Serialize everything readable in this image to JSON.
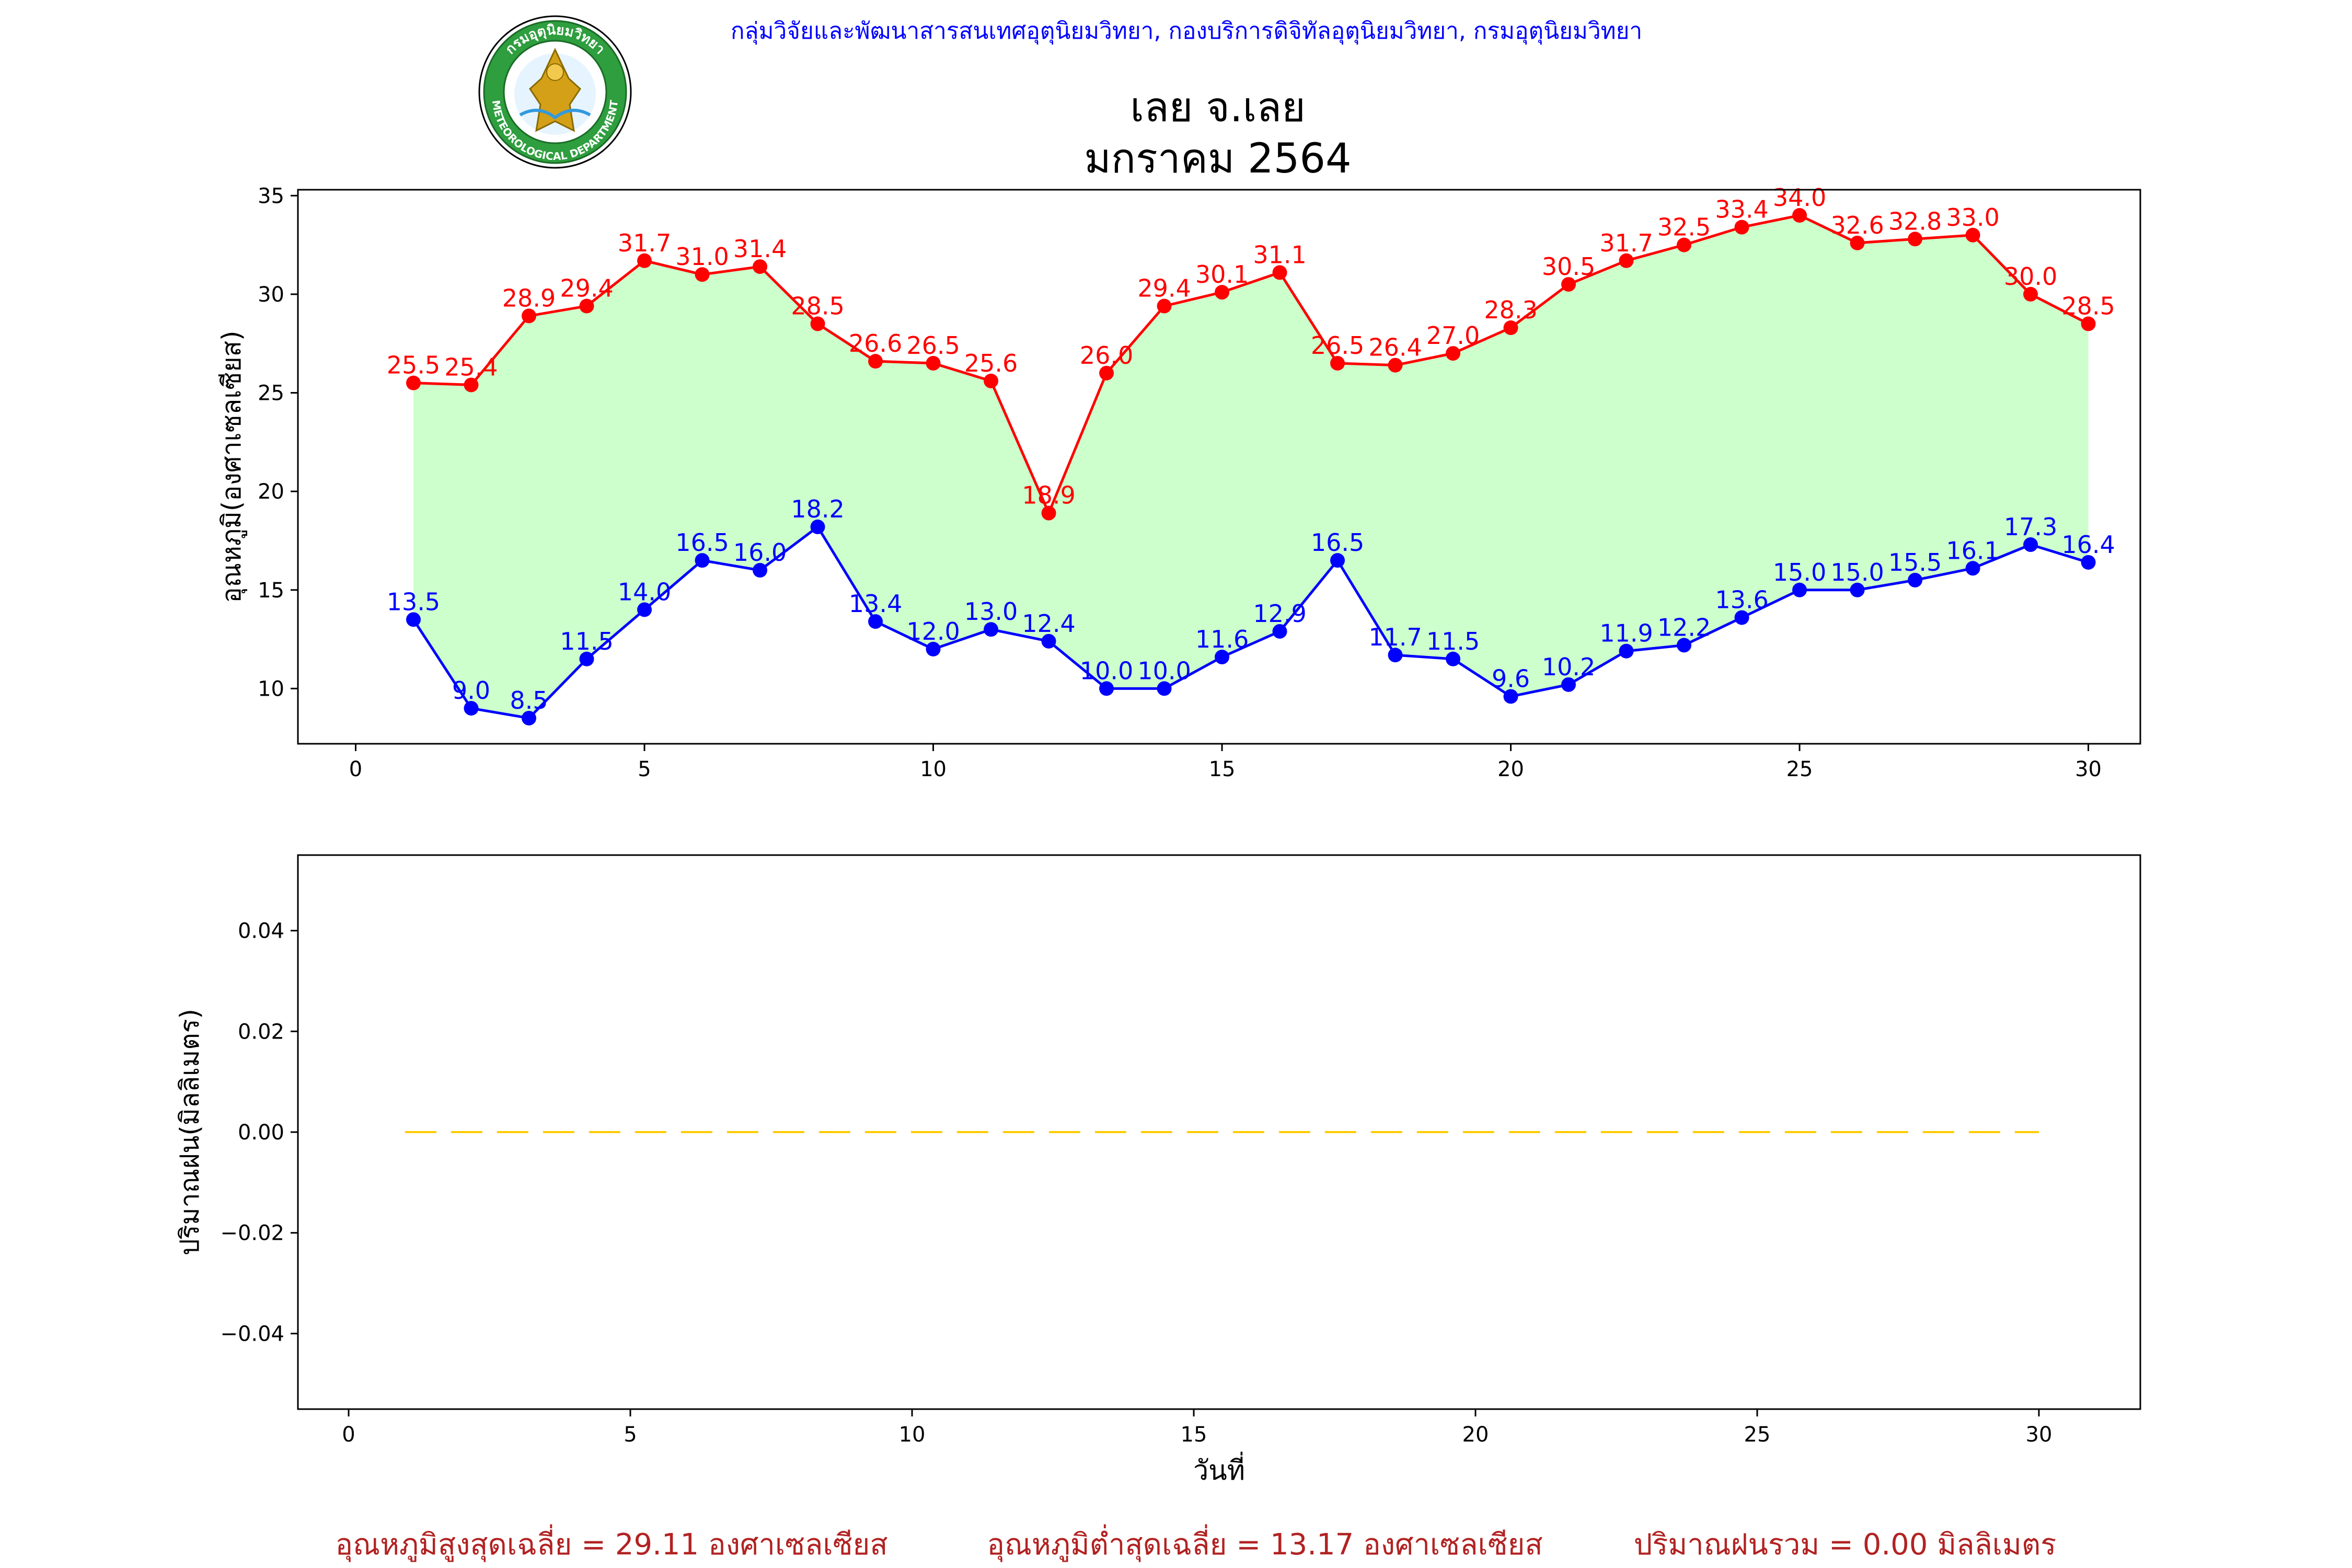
{
  "header": {
    "credit": "กลุ่มวิจัยและพัฒนาสารสนเทศอุตุนิยมวิทยา, กองบริการดิจิทัลอุตุนิยมวิทยา, กรมอุตุนิยมวิทยา",
    "station": "เลย จ.เลย",
    "period": "มกราคม 2564",
    "logo_top_text": "กรมอุตุนิยมวิทยา",
    "logo_bottom_text": "METEOROLOGICAL DEPARTMENT"
  },
  "colors": {
    "max": "#ff0000",
    "min": "#0000ff",
    "fill": "#ccffcc",
    "rain": "#ffcc00",
    "credit": "#0000ff",
    "footer": "#b22222"
  },
  "chart_data": [
    {
      "type": "line",
      "ylabel": "อุณหภูมิ(องศาเซลเซียส)",
      "xlabel": "",
      "xlim": [
        -1,
        30.9
      ],
      "ylim": [
        7.2,
        35.3
      ],
      "xticks": [
        "0",
        "5",
        "10",
        "15",
        "20",
        "25",
        "30"
      ],
      "yticks": [
        "10",
        "15",
        "20",
        "25",
        "30",
        "35"
      ],
      "x": [
        1,
        2,
        3,
        4,
        5,
        6,
        7,
        8,
        9,
        10,
        11,
        12,
        13,
        14,
        15,
        16,
        17,
        18,
        19,
        20,
        21,
        22,
        23,
        24,
        25,
        26,
        27,
        28,
        29,
        30
      ],
      "series": [
        {
          "values": [
            25.5,
            25.4,
            28.9,
            29.4,
            31.7,
            31.0,
            31.4,
            28.5,
            26.6,
            26.5,
            25.6,
            18.9,
            26.0,
            29.4,
            30.1,
            31.1,
            26.5,
            26.4,
            27.0,
            28.3,
            30.5,
            31.7,
            32.5,
            33.4,
            34.0,
            32.6,
            32.8,
            33.0,
            30.0,
            28.5
          ],
          "labels": [
            "25.5",
            "25.4",
            "28.9",
            "29.4",
            "31.7",
            "31.0",
            "31.4",
            "28.5",
            "26.6",
            "26.5",
            "25.6",
            "18.9",
            "26.0",
            "29.4",
            "30.1",
            "31.1",
            "26.5",
            "26.4",
            "27.0",
            "28.3",
            "30.5",
            "31.7",
            "32.5",
            "33.4",
            "34.0",
            "32.6",
            "32.8",
            "33.0",
            "30.0",
            "28.5"
          ]
        },
        {
          "values": [
            13.5,
            9.0,
            8.5,
            11.5,
            14.0,
            16.5,
            16.0,
            18.2,
            13.4,
            12.0,
            13.0,
            12.4,
            10.0,
            10.0,
            11.6,
            12.9,
            16.5,
            11.7,
            11.5,
            9.6,
            10.2,
            11.9,
            12.2,
            13.6,
            15.0,
            15.0,
            15.5,
            16.1,
            17.3,
            16.4
          ],
          "labels": [
            "13.5",
            "9.0",
            "8.5",
            "11.5",
            "14.0",
            "16.5",
            "16.0",
            "18.2",
            "13.4",
            "12.0",
            "13.0",
            "12.4",
            "10.0",
            "10.0",
            "11.6",
            "12.9",
            "16.5",
            "11.7",
            "11.5",
            "9.6",
            "10.2",
            "11.9",
            "12.2",
            "13.6",
            "15.0",
            "15.0",
            "15.5",
            "16.1",
            "17.3",
            "16.4"
          ]
        }
      ]
    },
    {
      "type": "line",
      "ylabel": "ปริมาณฝน(มิลลิเมตร)",
      "xlabel": "วันที่",
      "xlim": [
        -0.9,
        31.8
      ],
      "ylim": [
        -0.055,
        0.055
      ],
      "xticks": [
        "0",
        "5",
        "10",
        "15",
        "20",
        "25",
        "30"
      ],
      "yticks": [
        "0.04",
        "0.02",
        "0.00",
        "−0.02",
        "−0.04"
      ],
      "x": [
        1,
        2,
        3,
        4,
        5,
        6,
        7,
        8,
        9,
        10,
        11,
        12,
        13,
        14,
        15,
        16,
        17,
        18,
        19,
        20,
        21,
        22,
        23,
        24,
        25,
        26,
        27,
        28,
        29,
        30
      ],
      "series": [
        {
          "values": [
            0,
            0,
            0,
            0,
            0,
            0,
            0,
            0,
            0,
            0,
            0,
            0,
            0,
            0,
            0,
            0,
            0,
            0,
            0,
            0,
            0,
            0,
            0,
            0,
            0,
            0,
            0,
            0,
            0,
            0
          ],
          "style": "dashed"
        }
      ]
    }
  ],
  "footer": {
    "avg_max": "อุณหภูมิสูงสุดเฉลี่ย = 29.11 องศาเซลเซียส",
    "avg_min": "อุณหภูมิต่ำสุดเฉลี่ย = 13.17 องศาเซลเซียส",
    "rain_total": "ปริมาณฝนรวม = 0.00 มิลลิเมตร"
  }
}
